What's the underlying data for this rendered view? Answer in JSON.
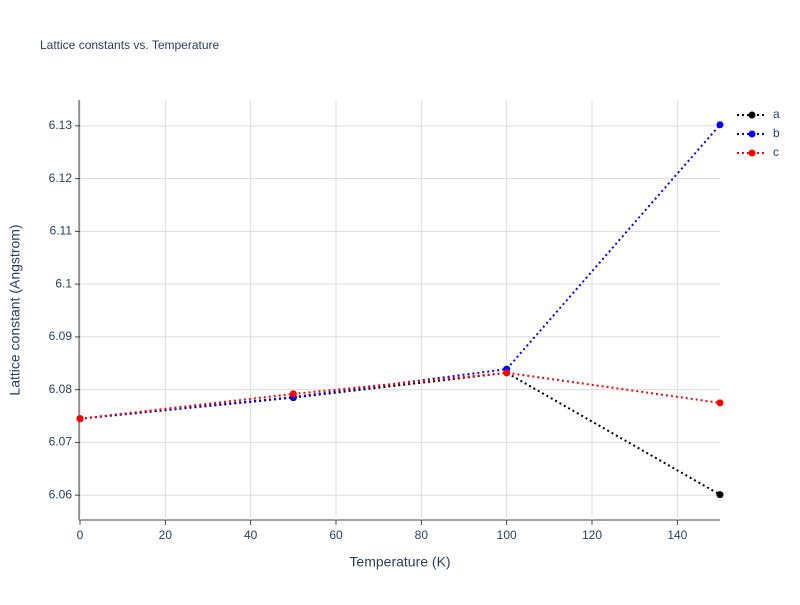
{
  "chart_data": {
    "type": "line",
    "title": "Lattice constants vs. Temperature",
    "x_label": "Temperature (K)",
    "y_label": "Lattice constant (Angstrom)",
    "x": [
      0,
      50,
      100,
      150
    ],
    "series": [
      {
        "name": "a",
        "color": "#000000",
        "values": [
          6.0745,
          6.0785,
          6.0832,
          6.0601
        ]
      },
      {
        "name": "b",
        "color": "#0000ff",
        "values": [
          6.0745,
          6.0786,
          6.0839,
          6.1302
        ]
      },
      {
        "name": "c",
        "color": "#ff0000",
        "values": [
          6.0745,
          6.0792,
          6.0832,
          6.0775
        ]
      }
    ],
    "xlim": [
      0,
      150
    ],
    "xticks": [
      0,
      20,
      40,
      60,
      80,
      100,
      120,
      140
    ],
    "ylim": [
      6.0553,
      6.1349
    ],
    "yticks": [
      6.06,
      6.07,
      6.08,
      6.09,
      6.1,
      6.11,
      6.12,
      6.13
    ],
    "grid": true,
    "legend": "right"
  }
}
